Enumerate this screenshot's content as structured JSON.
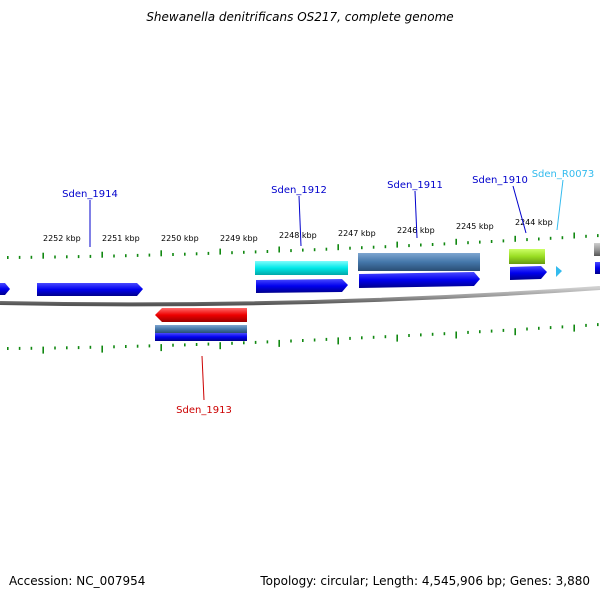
{
  "title": "Shewanella denitrificans OS217, complete genome",
  "footer": {
    "accession": "Accession: NC_007954",
    "stats": "Topology: circular; Length: 4,545,906 bp; Genes: 3,880"
  },
  "kbp_labels": [
    "2252 kbp",
    "2251 kbp",
    "2250 kbp",
    "2249 kbp",
    "2248 kbp",
    "2247 kbp",
    "2246 kbp",
    "2245 kbp",
    "2244 kbp"
  ],
  "genes": [
    {
      "name": "Sden_1914",
      "color": "#0000cc"
    },
    {
      "name": "Sden_1913",
      "color": "#cc0000"
    },
    {
      "name": "Sden_1912",
      "color": "#0000cc"
    },
    {
      "name": "Sden_1911",
      "color": "#0000cc"
    },
    {
      "name": "Sden_1910",
      "color": "#0000cc"
    },
    {
      "name": "Sden_R0073",
      "color": "#33bbee"
    }
  ],
  "colors": {
    "cds": "#0000ee",
    "gene_forward": "#00eeee",
    "gene_reverse": "#ee0000",
    "operon": "#4477aa",
    "rna": "#99dd22",
    "backbone": "#888888",
    "ticks": "#118811"
  }
}
